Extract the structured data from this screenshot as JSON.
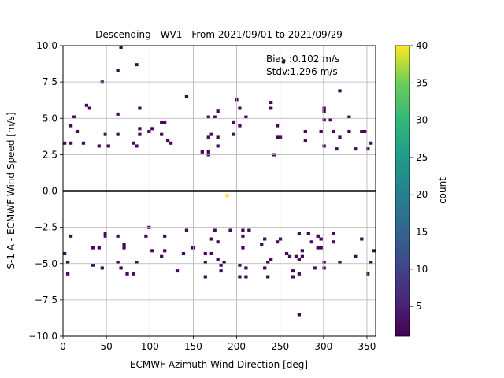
{
  "chart_data": {
    "type": "heatmap",
    "title": "Descending - WV1 - From 2021/09/01 to 2021/09/29",
    "xlabel": "ECMWF Azimuth Wind Direction [deg]",
    "ylabel": "S-1 A - ECMWF Wind Speed [m/s]",
    "xlim": [
      0,
      360
    ],
    "ylim": [
      -10,
      10
    ],
    "xticks": [
      0,
      50,
      100,
      150,
      200,
      250,
      300,
      350
    ],
    "xtick_labels": [
      "0",
      "50",
      "100",
      "150",
      "200",
      "250",
      "300",
      "350"
    ],
    "yticks": [
      -10,
      -7.5,
      -5,
      -2.5,
      0,
      2.5,
      5,
      7.5,
      10
    ],
    "ytick_labels": [
      "−10.0",
      "−7.5",
      "−5.0",
      "−2.5",
      "0.0",
      "2.5",
      "5.0",
      "7.5",
      "10.0"
    ],
    "grid": true,
    "zero_line": 0,
    "annotations": [
      "Bias :0.102 m/s",
      "Stdv:1.296 m/s"
    ],
    "colorbar": {
      "label": "count",
      "colormap": "viridis",
      "range": [
        1,
        40
      ],
      "ticks": [
        5,
        10,
        15,
        20,
        25,
        30,
        35,
        40
      ],
      "tick_labels": [
        "5",
        "10",
        "15",
        "20",
        "25",
        "30",
        "35",
        "40"
      ]
    },
    "bin_size": {
      "x_deg": 3.6,
      "y_ms": 0.2
    },
    "peak": {
      "x": 190,
      "y": -0.3,
      "count": 40
    },
    "distribution": {
      "core_y_range": [
        -2.5,
        2.5
      ],
      "dense_x_range": [
        140,
        240
      ],
      "outliers": [
        {
          "x": 67,
          "y": 9.8
        },
        {
          "x": 83,
          "y": 8.7
        },
        {
          "x": 63,
          "y": 8.3
        },
        {
          "x": 44,
          "y": 7.4
        },
        {
          "x": 270,
          "y": -8.6
        },
        {
          "x": 231,
          "y": -5.4
        },
        {
          "x": 66,
          "y": -5.4
        },
        {
          "x": 62,
          "y": -5.0
        },
        {
          "x": 5,
          "y": -5.0
        },
        {
          "x": 143,
          "y": 6.6
        },
        {
          "x": 320,
          "y": 6.8
        },
        {
          "x": 201,
          "y": 6.2
        },
        {
          "x": 255,
          "y": 8.9
        },
        {
          "x": 0,
          "y": -4.3
        },
        {
          "x": 358,
          "y": -4.2
        },
        {
          "x": 30,
          "y": 5.8
        },
        {
          "x": 238,
          "y": 6.1
        },
        {
          "x": 300,
          "y": 5.6
        }
      ]
    }
  },
  "colors": {
    "low": "#440154",
    "high": "#fde725",
    "zero_line": "#000000",
    "grid": "#b0b0b0"
  }
}
